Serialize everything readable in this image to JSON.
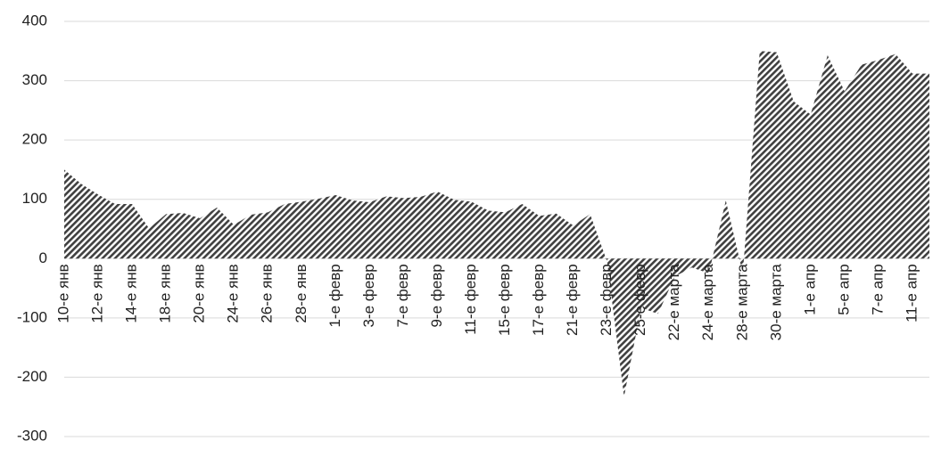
{
  "chart_data": {
    "type": "area",
    "categories": [
      "10-е янв",
      null,
      "12-е янв",
      null,
      "14-е янв",
      null,
      "18-е янв",
      null,
      "20-е янв",
      null,
      "24-е янв",
      null,
      "26-е янв",
      null,
      "28-е янв",
      null,
      "1-е февр",
      null,
      "3-е февр",
      null,
      "7-е февр",
      null,
      "9-е февр",
      null,
      "11-е февр",
      null,
      "15-е февр",
      null,
      "17-е февр",
      null,
      "21-е февр",
      null,
      "23-е февр",
      null,
      "25-е февр",
      null,
      "22-е марта",
      null,
      "24-е марта",
      null,
      "28-е марта",
      null,
      "30-е марта",
      null,
      "1-е апр",
      null,
      "5-е апр",
      null,
      "7-е апр",
      null,
      "11-е апр",
      null
    ],
    "values": [
      150,
      126,
      108,
      92,
      92,
      51,
      75,
      77,
      68,
      86,
      57,
      74,
      78,
      92,
      96,
      101,
      107,
      98,
      95,
      105,
      102,
      104,
      113,
      99,
      96,
      81,
      78,
      92,
      72,
      76,
      56,
      75,
      -5,
      -233,
      -83,
      -93,
      -30,
      -15,
      -25,
      98,
      -25,
      350,
      348,
      265,
      243,
      343,
      282,
      327,
      335,
      345,
      312,
      312
    ],
    "color": "#404040",
    "ylim": [
      -300,
      400
    ],
    "yticks": [
      -300,
      -200,
      -100,
      0,
      100,
      200,
      300,
      400
    ],
    "grid": true
  }
}
